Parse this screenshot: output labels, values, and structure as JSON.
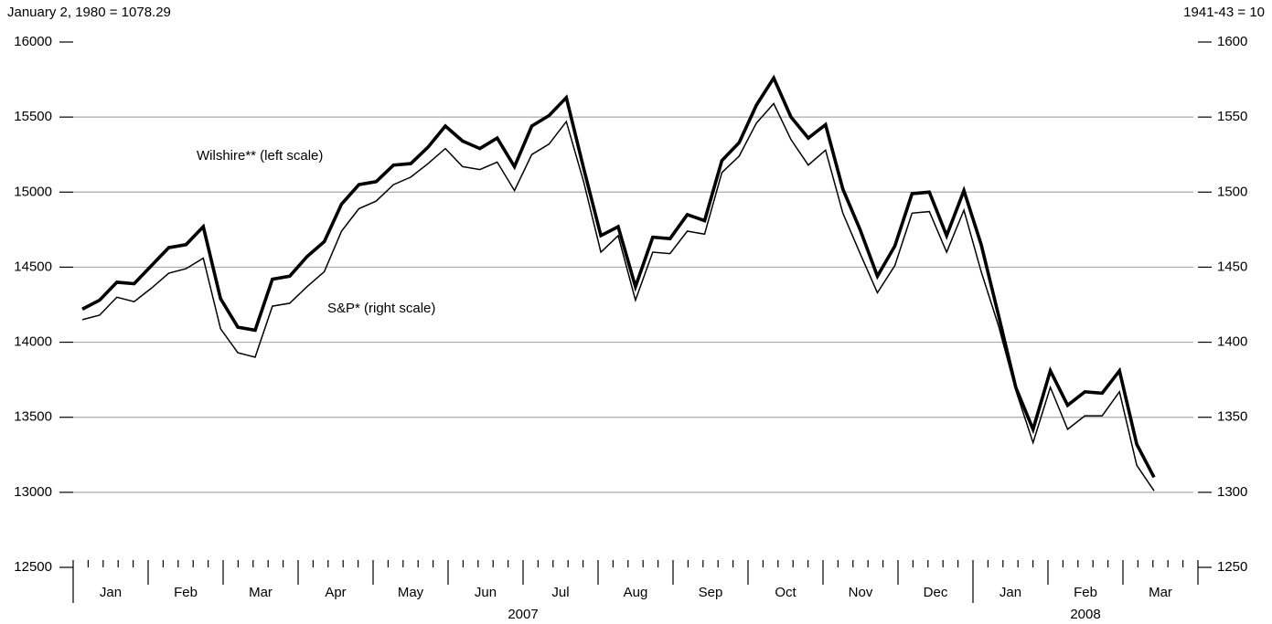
{
  "chart_data": {
    "type": "line",
    "left_note": "January 2, 1980 = 1078.29",
    "right_note": "1941-43 = 10",
    "annotations": [
      "Wilshire** (left scale)",
      "S&P* (right scale)"
    ],
    "month_labels": [
      "Jan",
      "Feb",
      "Mar",
      "Apr",
      "May",
      "Jun",
      "Jul",
      "Aug",
      "Sep",
      "Oct",
      "Nov",
      "Dec",
      "Jan",
      "Feb",
      "Mar"
    ],
    "year_labels": [
      "2007",
      "2008"
    ],
    "ylim": [
      12500,
      16000
    ],
    "yticks": [
      12500,
      13000,
      13500,
      14000,
      14500,
      15000,
      15500,
      16000
    ],
    "y2lim": [
      1250,
      1600
    ],
    "y2ticks": [
      1250,
      1300,
      1350,
      1400,
      1450,
      1500,
      1550,
      1600
    ],
    "grid": true,
    "series": [
      {
        "name": "Wilshire",
        "color": "#000000",
        "axis": "y",
        "values": [
          14220,
          14280,
          14400,
          14390,
          14510,
          14630,
          14650,
          14770,
          14290,
          14100,
          14080,
          14420,
          14440,
          14570,
          14670,
          14920,
          15050,
          15070,
          15180,
          15190,
          15300,
          15440,
          15340,
          15290,
          15360,
          15170,
          15440,
          15510,
          15630,
          15160,
          14710,
          14770,
          14370,
          14700,
          14690,
          14850,
          14810,
          15210,
          15330,
          15580,
          15760,
          15500,
          15360,
          15450,
          15020,
          14750,
          14440,
          14640,
          14990,
          15000,
          14710,
          15010,
          14650,
          14180,
          13700,
          13420,
          13810,
          13580,
          13670,
          13660,
          13810,
          13320,
          13100
        ]
      },
      {
        "name": "S&P",
        "color": "#000000",
        "axis": "y2",
        "values": [
          1415,
          1418,
          1430,
          1427,
          1436,
          1446,
          1449,
          1456,
          1409,
          1393,
          1390,
          1424,
          1426,
          1437,
          1447,
          1474,
          1489,
          1494,
          1505,
          1510,
          1519,
          1529,
          1517,
          1515,
          1520,
          1501,
          1525,
          1532,
          1547,
          1507,
          1460,
          1471,
          1428,
          1460,
          1459,
          1474,
          1472,
          1513,
          1524,
          1546,
          1559,
          1535,
          1518,
          1528,
          1486,
          1459,
          1433,
          1451,
          1486,
          1487,
          1460,
          1488,
          1447,
          1411,
          1368,
          1333,
          1370,
          1342,
          1351,
          1351,
          1367,
          1318,
          1301
        ]
      }
    ]
  }
}
